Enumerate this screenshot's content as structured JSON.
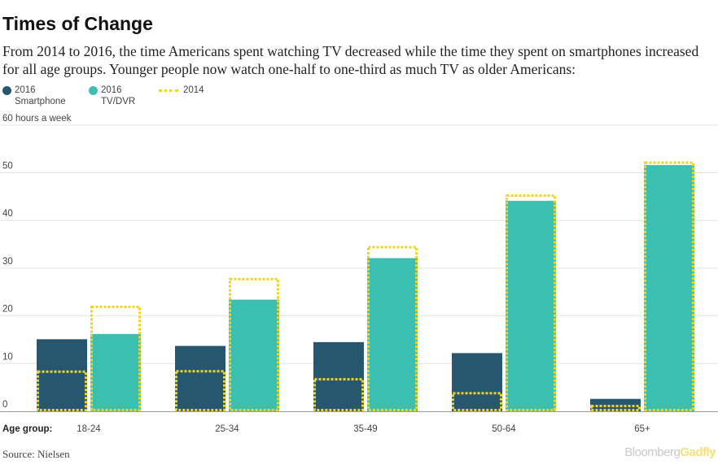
{
  "title": "Times of Change",
  "subtitle": "From 2014 to 2016, the time Americans spent watching TV decreased while the time they spent on smartphones increased for all age groups. Younger people now watch one-half to one-third as much TV as older Americans:",
  "legend": {
    "smartphone_year": "2016",
    "smartphone_label": "Smartphone",
    "tv_year": "2016",
    "tv_label": "TV/DVR",
    "prior_label": "2014"
  },
  "source": "Source: Nielsen",
  "brand": {
    "part1": "Bloomberg",
    "part2": "Gadfly"
  },
  "colors": {
    "smartphone": "#26576E",
    "tv": "#3BBFB1",
    "prior": "#F2D41F",
    "grid": "#e4e4e4",
    "axis": "#999999"
  },
  "chart_data": {
    "type": "bar",
    "title": "Times of Change",
    "ylabel": "60 hours a week",
    "xlabel": "Age group:",
    "ylim": [
      0,
      60
    ],
    "yticks": [
      0,
      10,
      20,
      30,
      40,
      50,
      60
    ],
    "ytick_labels": [
      "0",
      "10",
      "20",
      "30",
      "40",
      "50",
      "60 hours a week"
    ],
    "grid": true,
    "legend_position": "top-left",
    "categories": [
      "18-24",
      "25-34",
      "35-49",
      "50-64",
      "65+"
    ],
    "series": [
      {
        "name": "2016 Smartphone",
        "values": [
          15.1,
          13.7,
          14.5,
          12.2,
          2.6
        ]
      },
      {
        "name": "2016 TV/DVR",
        "values": [
          16.2,
          23.4,
          32.1,
          44.1,
          51.6
        ]
      }
    ],
    "prior_year": {
      "name": "2014",
      "smartphone": [
        8.3,
        8.4,
        6.7,
        3.8,
        1.1
      ],
      "tv": [
        21.9,
        27.7,
        34.4,
        45.2,
        52.1
      ]
    }
  }
}
